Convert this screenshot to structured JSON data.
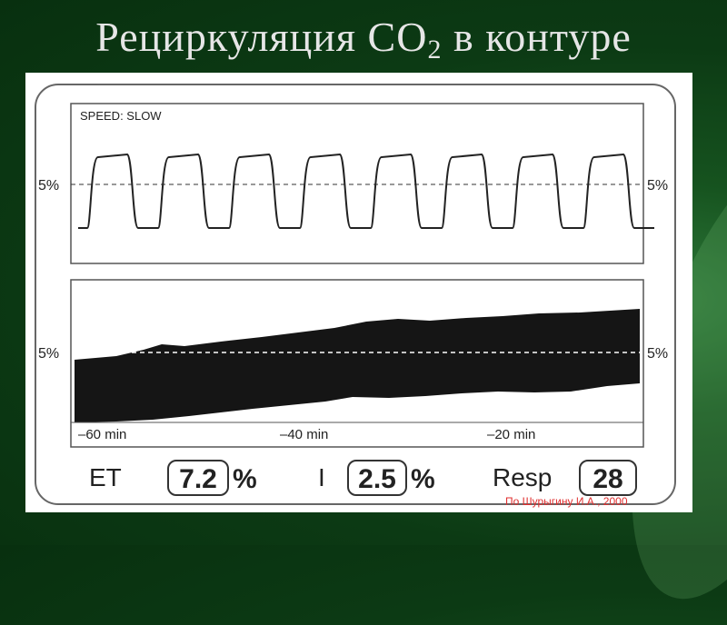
{
  "slide": {
    "title_main": "Рециркуляция CO",
    "title_sub": "2",
    "title_tail": " в контуре"
  },
  "capnogram": {
    "speed_label": "SPEED: SLOW",
    "left_marker": "5%",
    "right_marker": "5%",
    "cycles": 8
  },
  "trend": {
    "left_marker": "5%",
    "right_marker": "5%",
    "time_labels": [
      "–60 min",
      "–40 min",
      "–20 min"
    ]
  },
  "readouts": {
    "et_label": "ET",
    "et_value": "7.2",
    "et_unit": "%",
    "i_label": "I",
    "i_value": "2.5",
    "i_unit": "%",
    "resp_label": "Resp",
    "resp_value": "28"
  },
  "source_note": "По Шурыгину И.А., 2000",
  "colors": {
    "background": "#0c3a14",
    "title": "#e6e6e6",
    "source": "#e03030"
  }
}
